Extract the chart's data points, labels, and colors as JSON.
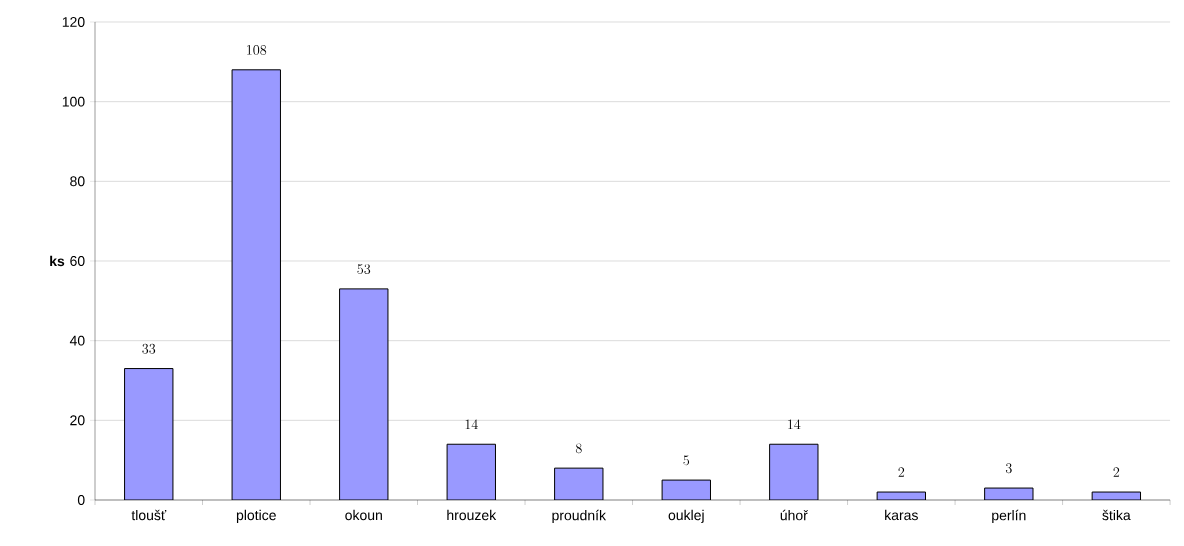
{
  "chart_data": {
    "type": "bar",
    "ylabel": "ks",
    "categories": [
      "tloušť",
      "plotice",
      "okoun",
      "hrouzek",
      "proudník",
      "ouklej",
      "úhoř",
      "karas",
      "perlín",
      "štika"
    ],
    "values": [
      33,
      108,
      53,
      14,
      8,
      5,
      14,
      2,
      3,
      2
    ],
    "color": "#9999ff",
    "ylim": [
      0,
      120
    ],
    "yticks": [
      0,
      20,
      40,
      60,
      80,
      100,
      120
    ],
    "grid": "y",
    "data_labels": true
  }
}
